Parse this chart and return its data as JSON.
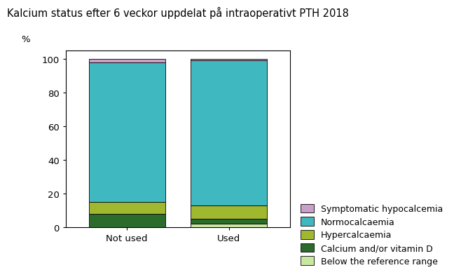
{
  "title": "Kalcium status efter 6 veckor uppdelat på intraoperativt PTH 2018",
  "ylabel": "%",
  "categories": [
    "Not used",
    "Used"
  ],
  "segments": [
    {
      "label": "Below the reference range",
      "color": "#c8e8a0",
      "values": [
        0,
        2
      ]
    },
    {
      "label": "Calcium and/or vitamin D",
      "color": "#2d6b2d",
      "values": [
        8,
        3
      ]
    },
    {
      "label": "Hypercalcaemia",
      "color": "#a0b830",
      "values": [
        7,
        8
      ]
    },
    {
      "label": "Normocalcaemia",
      "color": "#40b8c0",
      "values": [
        83,
        86
      ]
    },
    {
      "label": "Symptomatic hypocalcemia",
      "color": "#c8a0c8",
      "values": [
        2,
        1
      ]
    }
  ],
  "ylim": [
    0,
    105
  ],
  "yticks": [
    0,
    20,
    40,
    60,
    80,
    100
  ],
  "bar_width": 0.75,
  "title_fontsize": 10.5,
  "axis_fontsize": 9.5,
  "legend_fontsize": 9,
  "background_color": "#ffffff"
}
